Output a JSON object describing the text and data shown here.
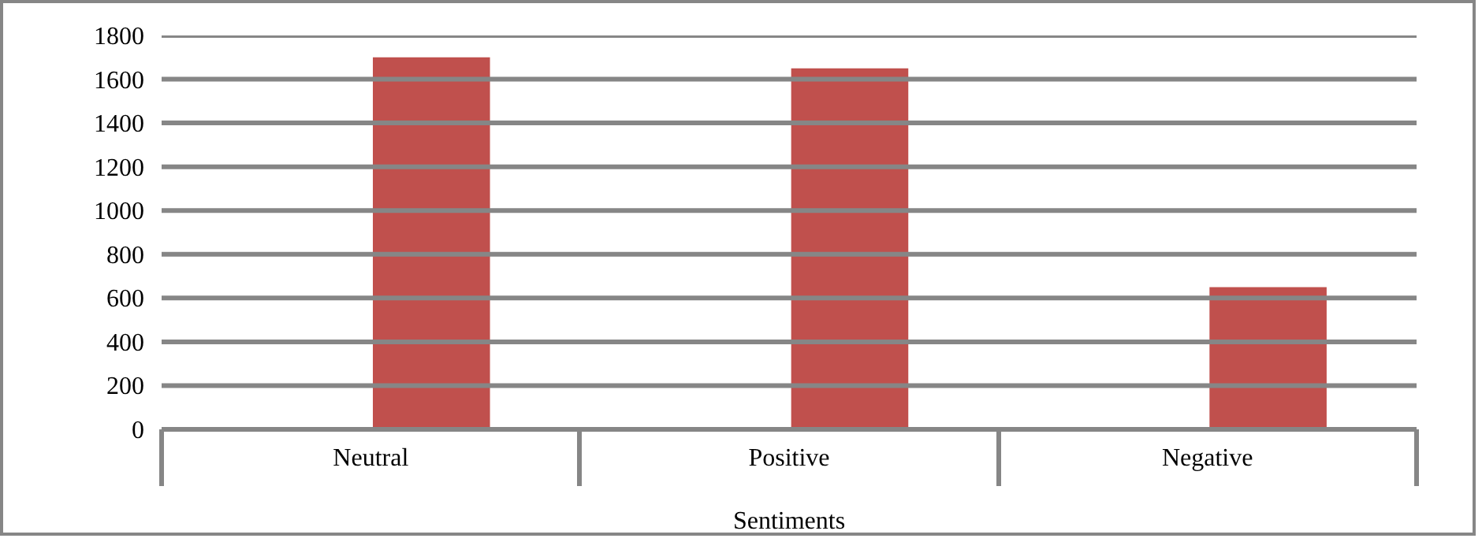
{
  "chart_data": {
    "type": "bar",
    "xlabel": "Sentiments",
    "categories": [
      "Neutral",
      "Positive",
      "Negative"
    ],
    "values": [
      1700,
      1650,
      650
    ],
    "color": "#c0504d",
    "ylim": [
      0,
      1800
    ],
    "yticks": [
      0,
      200,
      400,
      600,
      800,
      1000,
      1200,
      1400,
      1600,
      1800
    ],
    "grid": "y"
  }
}
